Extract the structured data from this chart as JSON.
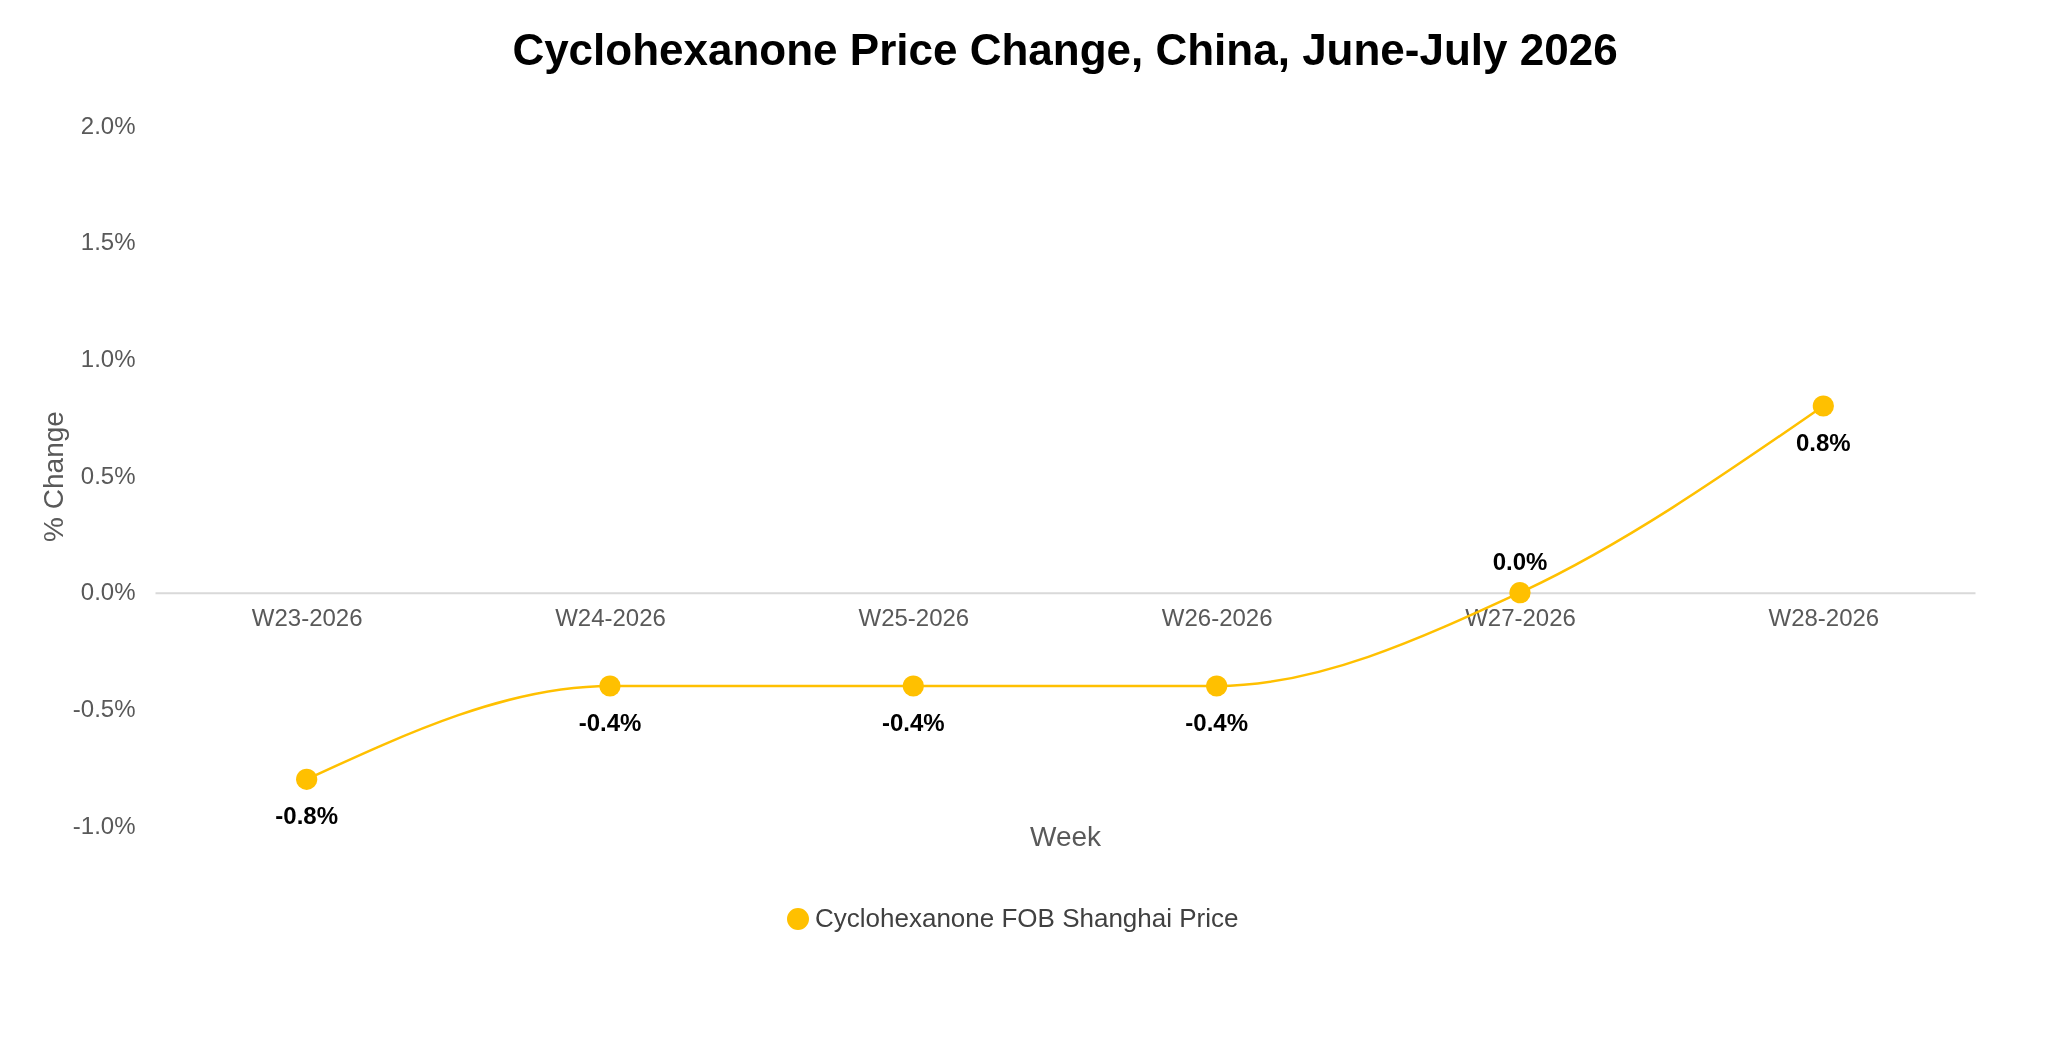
{
  "chart_data": {
    "type": "line",
    "title": "Cyclohexanone Price Change, China, June-July 2026",
    "xlabel": "Week",
    "ylabel": "% Change",
    "categories": [
      "W23-2026",
      "W24-2026",
      "W25-2026",
      "W26-2026",
      "W27-2026",
      "W28-2026"
    ],
    "series": [
      {
        "name": "Cyclohexanone FOB Shanghai Price",
        "color": "#ffc000",
        "values": [
          -0.8,
          -0.4,
          -0.4,
          -0.4,
          0.0,
          0.8
        ],
        "value_labels": [
          "-0.8%",
          "-0.4%",
          "-0.4%",
          "-0.4%",
          "0.0%",
          "0.8%"
        ]
      }
    ],
    "ylim": [
      -1.0,
      2.0
    ],
    "yticks": [
      {
        "value": -1.0,
        "label": "-1.0%"
      },
      {
        "value": -0.5,
        "label": "-0.5%"
      },
      {
        "value": 0.0,
        "label": "0.0%"
      },
      {
        "value": 0.5,
        "label": "0.5%"
      },
      {
        "value": 1.0,
        "label": "1.0%"
      },
      {
        "value": 1.5,
        "label": "1.5%"
      },
      {
        "value": 2.0,
        "label": "2.0%"
      }
    ],
    "grid": false,
    "legend": "bottom",
    "marker": "circle",
    "line_style": "solid"
  }
}
